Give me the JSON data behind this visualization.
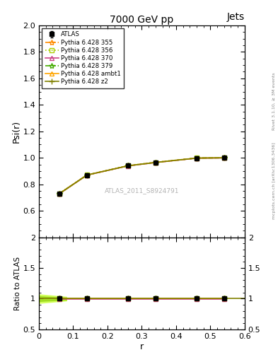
{
  "title": "7000 GeV pp",
  "title_right": "Jets",
  "ylabel_main": "Psi(r)",
  "ylabel_ratio": "Ratio to ATLAS",
  "xlabel": "r",
  "right_label": "mcplots.cern.ch [arXiv:1306.3436]",
  "right_label2": "Rivet 3.1.10, ≥ 3M events",
  "watermark": "ATLAS_2011_S8924791",
  "ylim_main": [
    0.4,
    2.0
  ],
  "ylim_ratio": [
    0.5,
    2.0
  ],
  "xlim": [
    0.0,
    0.6
  ],
  "x_data": [
    0.06,
    0.14,
    0.26,
    0.34,
    0.46,
    0.54
  ],
  "atlas_y": [
    0.73,
    0.87,
    0.94,
    0.965,
    0.998,
    1.0
  ],
  "atlas_yerr": [
    0.012,
    0.006,
    0.004,
    0.003,
    0.001,
    0.001
  ],
  "lines": [
    {
      "label": "Pythia 6.428 355",
      "color": "#ff8c00",
      "linestyle": "--",
      "marker": "*",
      "ms": 6,
      "y": [
        0.73,
        0.87,
        0.94,
        0.965,
        0.998,
        1.0
      ],
      "ratio": [
        1.0,
        1.0,
        1.0,
        1.0,
        1.0,
        1.0
      ]
    },
    {
      "label": "Pythia 6.428 356",
      "color": "#aacc00",
      "linestyle": ":",
      "marker": "s",
      "ms": 4,
      "y": [
        0.731,
        0.871,
        0.941,
        0.966,
        0.999,
        1.001
      ],
      "ratio": [
        1.001,
        1.001,
        1.001,
        1.001,
        1.001,
        1.001
      ]
    },
    {
      "label": "Pythia 6.428 370",
      "color": "#cc4488",
      "linestyle": "-",
      "marker": "^",
      "ms": 5,
      "y": [
        0.729,
        0.869,
        0.939,
        0.964,
        0.997,
        0.999
      ],
      "ratio": [
        0.999,
        0.999,
        0.999,
        0.999,
        0.999,
        0.999
      ]
    },
    {
      "label": "Pythia 6.428 379",
      "color": "#44aa00",
      "linestyle": "--",
      "marker": "*",
      "ms": 6,
      "y": [
        0.73,
        0.87,
        0.94,
        0.965,
        0.998,
        1.0
      ],
      "ratio": [
        1.0,
        1.0,
        1.0,
        1.0,
        1.0,
        1.0
      ]
    },
    {
      "label": "Pythia 6.428 ambt1",
      "color": "#ffa500",
      "linestyle": "-",
      "marker": "^",
      "ms": 5,
      "y": [
        0.73,
        0.87,
        0.94,
        0.965,
        0.998,
        1.0
      ],
      "ratio": [
        1.0,
        1.0,
        1.0,
        1.0,
        1.0,
        1.0
      ]
    },
    {
      "label": "Pythia 6.428 z2",
      "color": "#808000",
      "linestyle": "-",
      "marker": "+",
      "ms": 6,
      "y": [
        0.73,
        0.87,
        0.94,
        0.965,
        0.998,
        1.0
      ],
      "ratio": [
        1.0,
        1.0,
        1.0,
        1.0,
        1.0,
        1.0
      ]
    }
  ],
  "yticks_main": [
    0.4,
    0.6,
    0.8,
    1.0,
    1.2,
    1.4,
    1.6,
    1.8,
    2.0
  ],
  "yticks_ratio": [
    0.5,
    1.0,
    1.5,
    2.0
  ],
  "xticks": [
    0.0,
    0.1,
    0.2,
    0.3,
    0.4,
    0.5,
    0.6
  ]
}
